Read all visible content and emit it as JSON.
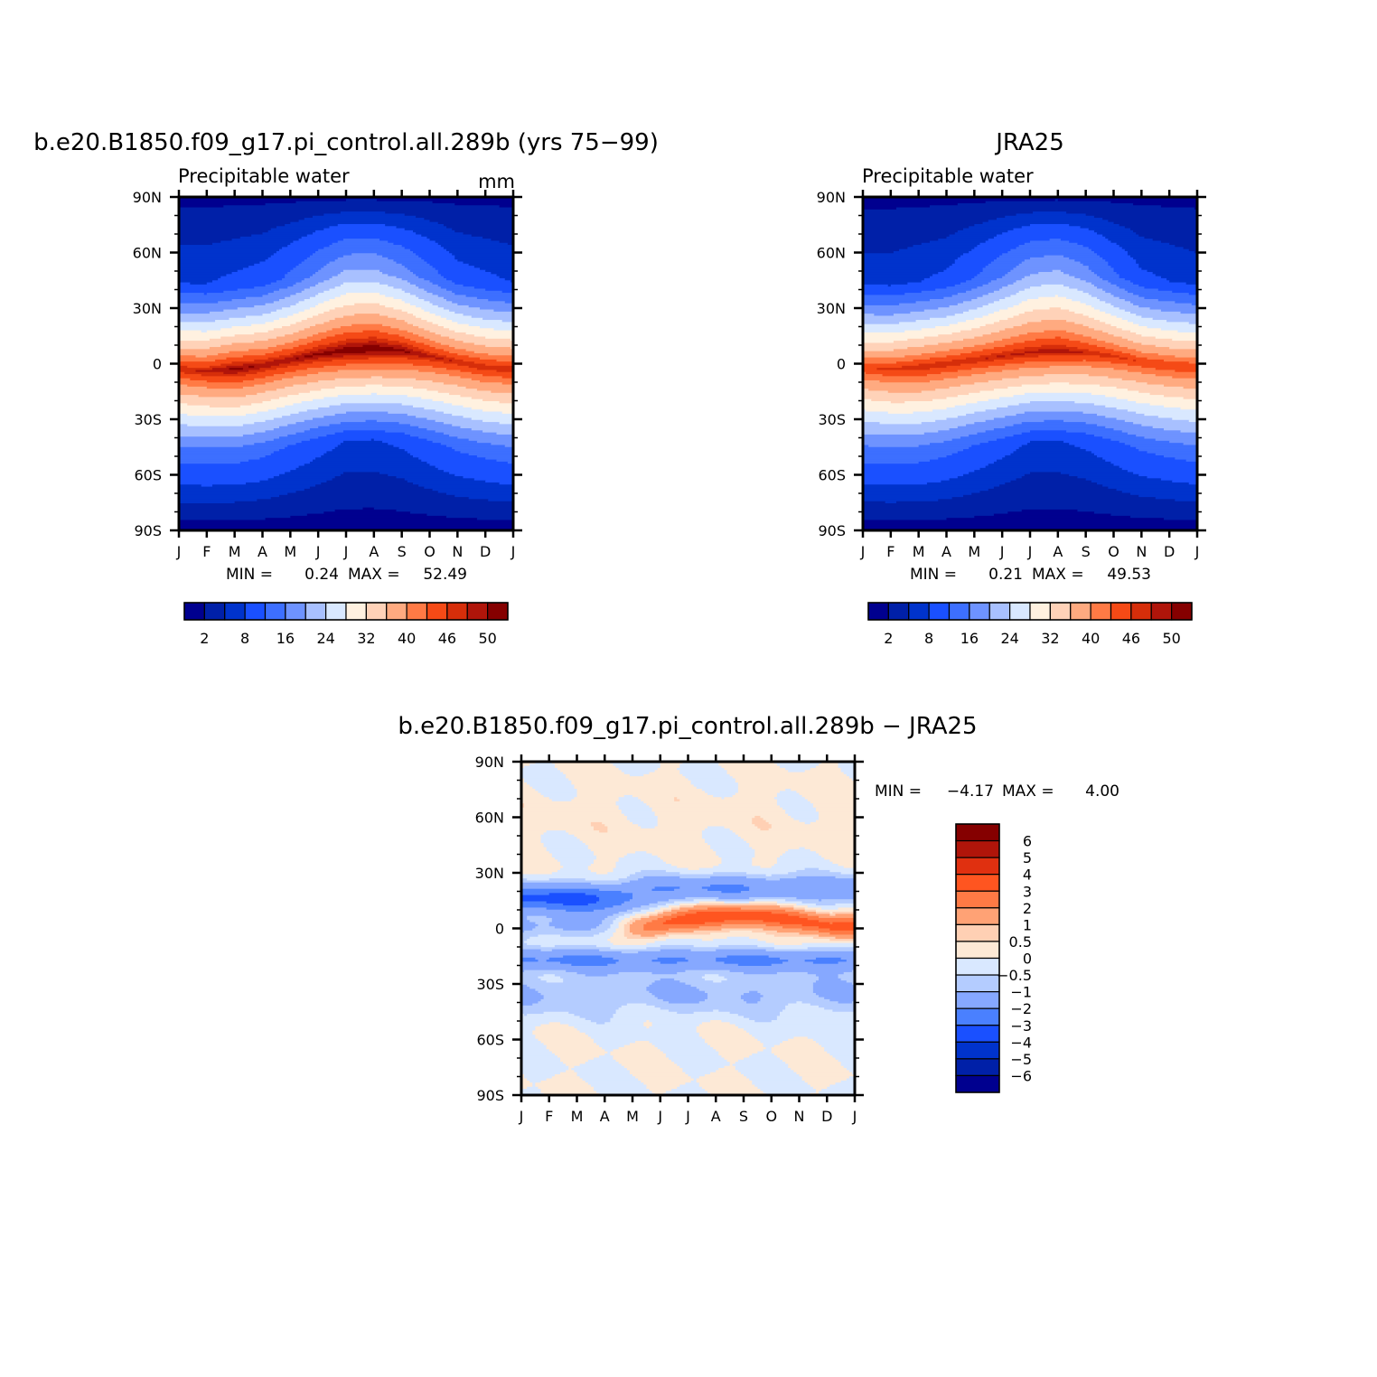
{
  "figure": {
    "model_title": "b.e20.B1850.f09_g17.pi_control.all.289b (yrs 75-99)",
    "obs_title": "JRA25",
    "diff_title": "b.e20.B1850.f09_g17.pi_control.all.289b - JRA25"
  },
  "palettes": {
    "precip": [
      "#00008f",
      "#0020a8",
      "#0033cc",
      "#1a50ff",
      "#3d6fff",
      "#6e93ff",
      "#a8c0ff",
      "#d9e8ff",
      "#fff1e0",
      "#ffd2b8",
      "#ffaa80",
      "#ff7a45",
      "#f54a16",
      "#d62e0a",
      "#b0150a",
      "#850000"
    ],
    "diff": [
      "#00008f",
      "#0020a8",
      "#0033cc",
      "#1a50ff",
      "#4a80ff",
      "#86a8ff",
      "#b4ccff",
      "#d9e8ff",
      "#fde9d6",
      "#ffd0b4",
      "#ffa275",
      "#ff7a45",
      "#ff5520",
      "#e03010",
      "#b0150a",
      "#850000"
    ]
  },
  "chart_data": [
    {
      "type": "heatmap",
      "id": "model",
      "title": "b.e20.B1850.f09_g17.pi_control.all.289b (yrs 75-99)",
      "subtitle": "Precipitable water",
      "units": "mm",
      "x_ticks": [
        "J",
        "F",
        "M",
        "A",
        "M",
        "J",
        "J",
        "A",
        "S",
        "O",
        "N",
        "D",
        "J"
      ],
      "y_ticks": [
        "90N",
        "60N",
        "30N",
        "0",
        "30S",
        "60S",
        "90S"
      ],
      "ylim": [
        -90,
        90
      ],
      "stats": {
        "min_label": "MIN =",
        "min": "0.24",
        "max_label": "MAX =",
        "max": "52.49"
      },
      "colorbar_levels": [
        2,
        5,
        8,
        12,
        16,
        20,
        24,
        28,
        32,
        36,
        40,
        43,
        46,
        48,
        50
      ],
      "colorbar_labels": [
        "2",
        "8",
        "16",
        "24",
        "32",
        "40",
        "46",
        "50"
      ],
      "itcz_lat": [
        -3,
        -4,
        -3,
        -1,
        2,
        5,
        7,
        8,
        7,
        4,
        1,
        -2,
        -3
      ],
      "peak": [
        48,
        49,
        51,
        50,
        50,
        51,
        52,
        52.5,
        51,
        49,
        48,
        48,
        48
      ],
      "south_mid": [
        15,
        15,
        15,
        14,
        12,
        10,
        8,
        8,
        9,
        11,
        13,
        14,
        15
      ],
      "north_mid": [
        8,
        8,
        9,
        10,
        13,
        17,
        21,
        21,
        18,
        14,
        10,
        9,
        8
      ]
    },
    {
      "type": "heatmap",
      "id": "obs",
      "title": "JRA25",
      "subtitle": "Precipitable water",
      "x_ticks": [
        "J",
        "F",
        "M",
        "A",
        "M",
        "J",
        "J",
        "A",
        "S",
        "O",
        "N",
        "D",
        "J"
      ],
      "y_ticks": [
        "90N",
        "60N",
        "30N",
        "0",
        "30S",
        "60S",
        "90S"
      ],
      "ylim": [
        -90,
        90
      ],
      "stats": {
        "min_label": "MIN =",
        "min": "0.21",
        "max_label": "MAX =",
        "max": "49.53"
      },
      "colorbar_levels": [
        2,
        5,
        8,
        12,
        16,
        20,
        24,
        28,
        32,
        36,
        40,
        43,
        46,
        48,
        50
      ],
      "colorbar_labels": [
        "2",
        "8",
        "16",
        "24",
        "32",
        "40",
        "46",
        "50"
      ],
      "itcz_lat": [
        -2,
        -3,
        -2,
        0,
        2,
        4,
        6,
        7,
        6,
        4,
        1,
        -1,
        -2
      ],
      "peak": [
        46,
        47,
        48,
        48,
        48,
        48.5,
        49,
        49.5,
        48,
        47,
        46,
        46,
        46
      ],
      "south_mid": [
        15,
        15,
        15,
        14,
        12,
        10,
        8,
        8,
        9,
        11,
        13,
        14,
        15
      ],
      "north_mid": [
        7,
        7,
        8,
        9,
        12,
        16,
        20,
        21,
        18,
        13,
        9,
        8,
        7
      ]
    },
    {
      "type": "heatmap",
      "id": "diff",
      "title": "b.e20.B1850.f09_g17.pi_control.all.289b - JRA25",
      "x_ticks": [
        "J",
        "F",
        "M",
        "A",
        "M",
        "J",
        "J",
        "A",
        "S",
        "O",
        "N",
        "D",
        "J"
      ],
      "y_ticks": [
        "90N",
        "60N",
        "30N",
        "0",
        "30S",
        "60S",
        "90S"
      ],
      "ylim": [
        -90,
        90
      ],
      "stats": {
        "min_label": "MIN =",
        "min": "-4.17",
        "max_label": "MAX =",
        "max": "4.00"
      },
      "colorbar_levels": [
        -6,
        -5,
        -4,
        -3,
        -2,
        -1,
        -0.5,
        0,
        0.5,
        1,
        2,
        3,
        4,
        5,
        6
      ],
      "colorbar_labels": [
        "6",
        "5",
        "4",
        "3",
        "2",
        "1",
        "0.5",
        "0",
        "-0.5",
        "-1",
        "-2",
        "-3",
        "-4",
        "-5",
        "-6"
      ]
    }
  ]
}
